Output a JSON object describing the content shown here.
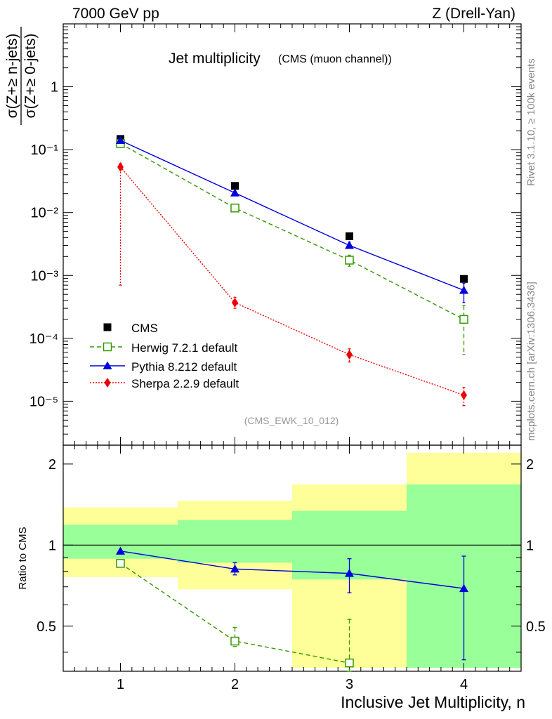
{
  "header": {
    "left": "7000 GeV pp",
    "right": "Z (Drell-Yan)"
  },
  "side_text": {
    "rivet": "Rivet 3.1.10, ≥ 100k events",
    "mcplots": "mcplots.cern.ch [arXiv:1306.3436]"
  },
  "chart_data": [
    {
      "type": "scatter",
      "title": "Jet multiplicity",
      "subtitle": "(CMS (muon channel))",
      "ylabel_num": "σ(Z+≥ n-jets)",
      "ylabel_den": "σ(Z+≥ 0-jets)",
      "xlabel": "Inclusive Jet Multiplicity, n",
      "watermark": "(CMS_EWK_10_012)",
      "y_scale": "log",
      "xlim": [
        0.5,
        4.5
      ],
      "ylim": [
        2e-06,
        10
      ],
      "x_ticks": [
        "1",
        "2",
        "3",
        "4"
      ],
      "y_ticks": [
        "10⁻⁵",
        "10⁻⁴",
        "10⁻³",
        "10⁻²",
        "10⁻¹",
        "1"
      ],
      "legend_position": "bottom-left",
      "x": [
        1,
        2,
        3,
        4
      ],
      "series": [
        {
          "name": "CMS",
          "color": "#000000",
          "marker": "square",
          "values": [
            0.148,
            0.0265,
            0.0042,
            0.00088
          ]
        },
        {
          "name": "Herwig 7.2.1 default",
          "color": "#339900",
          "marker": "open-square",
          "line": "dashed",
          "values": [
            0.125,
            0.0118,
            0.00175,
            0.0002
          ],
          "err_low": [
            0.12,
            0.0113,
            0.0014,
            5.5e-05
          ],
          "err_high": [
            0.13,
            0.0123,
            0.0021,
            0.00033
          ]
        },
        {
          "name": "Pythia 8.212 default",
          "color": "#0000dd",
          "marker": "triangle",
          "line": "solid",
          "values": [
            0.14,
            0.0205,
            0.003,
            0.00058
          ],
          "err_low": [
            0.138,
            0.0198,
            0.0027,
            0.00037
          ],
          "err_high": [
            0.142,
            0.0212,
            0.0034,
            0.00075
          ]
        },
        {
          "name": "Sherpa 2.2.9 default",
          "color": "#ee0000",
          "marker": "diamond",
          "line": "dotted",
          "values": [
            0.053,
            0.00037,
            5.5e-05,
            1.25e-05
          ],
          "err_low": [
            0.0007,
            0.0003,
            4.2e-05,
            8.5e-06
          ],
          "err_high": [
            0.06,
            0.00045,
            6.8e-05,
            1.65e-05
          ]
        }
      ]
    },
    {
      "type": "line",
      "ylabel": "Ratio to CMS",
      "y_scale": "log",
      "ylim": [
        0.34,
        2.35
      ],
      "y_ticks": [
        "0.5",
        "1",
        "2"
      ],
      "reference_line": 1,
      "bands": [
        {
          "x_range": [
            0.5,
            1.5
          ],
          "yellow": [
            0.76,
            1.38
          ],
          "green": [
            0.89,
            1.19
          ]
        },
        {
          "x_range": [
            1.5,
            2.5
          ],
          "yellow": [
            0.685,
            1.46
          ],
          "green": [
            0.86,
            1.24
          ]
        },
        {
          "x_range": [
            2.5,
            3.5
          ],
          "yellow": [
            0.35,
            1.68
          ],
          "green": [
            0.745,
            1.34
          ]
        },
        {
          "x_range": [
            3.5,
            4.5
          ],
          "yellow": [
            0.35,
            2.2
          ],
          "green": [
            0.35,
            1.68
          ]
        }
      ],
      "series": [
        {
          "name": "Herwig 7.2.1 default",
          "color": "#339900",
          "marker": "open-square",
          "line": "dashed",
          "values": [
            0.855,
            0.44,
            0.365
          ],
          "err_low": [
            0.855,
            0.42,
            0.34
          ],
          "err_high": [
            0.855,
            0.495,
            0.53
          ]
        },
        {
          "name": "Pythia 8.212 default",
          "color": "#0000dd",
          "marker": "triangle",
          "line": "solid",
          "values": [
            0.95,
            0.815,
            0.785,
            0.69
          ],
          "err_low": [
            0.95,
            0.775,
            0.665,
            0.375
          ],
          "err_high": [
            0.95,
            0.86,
            0.89,
            0.91
          ]
        }
      ]
    }
  ]
}
